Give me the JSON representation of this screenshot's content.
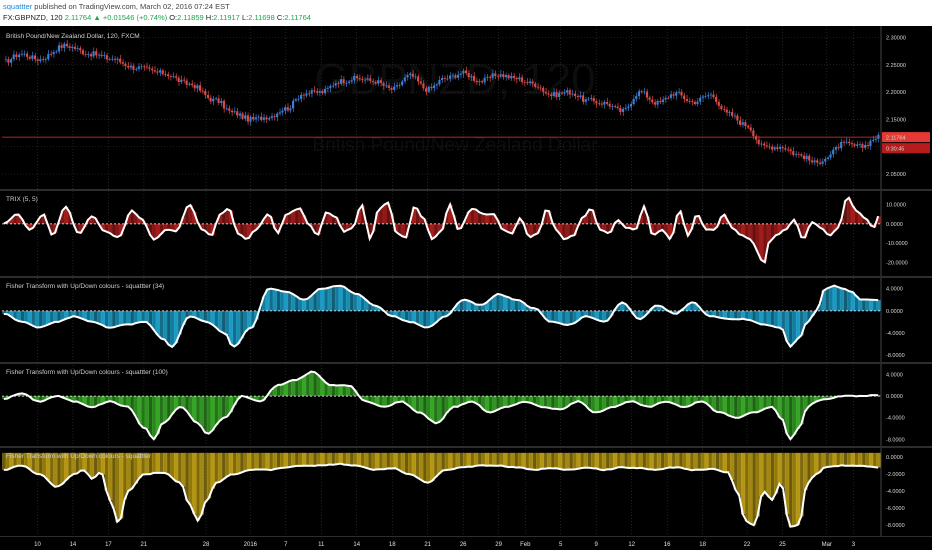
{
  "header": {
    "user": "squattter",
    "published": " published on TradingView.com, March 02, 2016 07:24 EST",
    "symbol": "FX:GBPNZD, 120",
    "last": "2.11764",
    "change": "+0.01546 (+0.74%)",
    "o_label": "O:",
    "o": "2.11859",
    "h_label": "H:",
    "h": "2.11917",
    "l_label": "L:",
    "l": "2.11698",
    "c_label": "C:",
    "c": "2.11764"
  },
  "colors": {
    "up": "#3c7fd6",
    "down": "#e04b49",
    "trix_fill": "#b0201e",
    "fisher34_fill": "#21a9d4",
    "fisher100_fill": "#3cb32b",
    "fisher_last_fill": "#c5a517",
    "grid": "#3a3a3a",
    "price_line": "#e53935"
  },
  "chart_data": [
    {
      "id": "price",
      "type": "candlestick",
      "title": "British Pound/New Zealand Dollar, 120, FXCM",
      "watermark": "GBPNZD, 120",
      "watermark_sub": "British Pound/New Zealand Dollar",
      "ylim": [
        2.03,
        2.31
      ],
      "yticks": [
        "2.30000",
        "2.25000",
        "2.20000",
        "2.15000",
        "2.10000",
        "2.05000"
      ],
      "last_price": "2.11764",
      "countdown": "0:30:45",
      "anchors": [
        [
          0,
          2.255
        ],
        [
          2,
          2.27
        ],
        [
          4,
          2.26
        ],
        [
          7,
          2.285
        ],
        [
          10,
          2.27
        ],
        [
          12,
          2.262
        ],
        [
          15,
          2.245
        ],
        [
          18,
          2.235
        ],
        [
          21,
          2.215
        ],
        [
          24,
          2.185
        ],
        [
          26,
          2.162
        ],
        [
          28,
          2.15
        ],
        [
          30,
          2.155
        ],
        [
          32,
          2.17
        ],
        [
          34,
          2.198
        ],
        [
          36,
          2.2
        ],
        [
          38,
          2.22
        ],
        [
          40,
          2.225
        ],
        [
          42,
          2.22
        ],
        [
          44,
          2.205
        ],
        [
          46,
          2.23
        ],
        [
          48,
          2.205
        ],
        [
          50,
          2.225
        ],
        [
          52,
          2.235
        ],
        [
          54,
          2.22
        ],
        [
          56,
          2.232
        ],
        [
          58,
          2.225
        ],
        [
          60,
          2.215
        ],
        [
          62,
          2.195
        ],
        [
          64,
          2.2
        ],
        [
          66,
          2.185
        ],
        [
          68,
          2.18
        ],
        [
          70,
          2.165
        ],
        [
          72,
          2.2
        ],
        [
          74,
          2.18
        ],
        [
          76,
          2.198
        ],
        [
          78,
          2.182
        ],
        [
          80,
          2.195
        ],
        [
          82,
          2.16
        ],
        [
          84,
          2.14
        ],
        [
          86,
          2.1
        ],
        [
          88,
          2.1
        ],
        [
          90,
          2.085
        ],
        [
          92,
          2.07
        ],
        [
          93,
          2.08
        ],
        [
          95,
          2.105
        ],
        [
          97,
          2.1
        ],
        [
          99,
          2.118
        ]
      ]
    },
    {
      "id": "trix",
      "type": "area",
      "title": "TRIX (5, 5)",
      "ylim": [
        -25,
        15
      ],
      "yticks": [
        10,
        0,
        -10,
        -20
      ],
      "ytick_labels": [
        "10.0000",
        "0.0000",
        "-10.0000",
        "-20.0000"
      ],
      "anchors": [
        [
          0,
          0
        ],
        [
          1.5,
          5
        ],
        [
          3,
          -3
        ],
        [
          4.5,
          5
        ],
        [
          5.5,
          -6
        ],
        [
          7,
          9
        ],
        [
          8.5,
          -5
        ],
        [
          10,
          4
        ],
        [
          11.5,
          -4
        ],
        [
          13,
          -7
        ],
        [
          14.5,
          7
        ],
        [
          15.5,
          3
        ],
        [
          17,
          -8
        ],
        [
          18.5,
          -3
        ],
        [
          19.5,
          -4
        ],
        [
          21,
          10
        ],
        [
          22.5,
          -3
        ],
        [
          23.5,
          -6
        ],
        [
          24.5,
          5
        ],
        [
          25.5,
          8
        ],
        [
          26.5,
          -5
        ],
        [
          27.5,
          -8
        ],
        [
          28.5,
          -3
        ],
        [
          30,
          5
        ],
        [
          31,
          -5
        ],
        [
          32,
          5
        ],
        [
          33.5,
          8
        ],
        [
          34.5,
          0
        ],
        [
          35.5,
          -6
        ],
        [
          36.5,
          6
        ],
        [
          37.5,
          4
        ],
        [
          38.5,
          -4
        ],
        [
          39.5,
          -2
        ],
        [
          40.5,
          10
        ],
        [
          41.5,
          -8
        ],
        [
          42.5,
          8
        ],
        [
          43.5,
          11
        ],
        [
          44.5,
          -5
        ],
        [
          45.5,
          -7
        ],
        [
          46.5,
          9
        ],
        [
          47.5,
          3
        ],
        [
          48.5,
          -8
        ],
        [
          49.5,
          -4
        ],
        [
          50.5,
          10
        ],
        [
          51.5,
          -3
        ],
        [
          53,
          8
        ],
        [
          54.5,
          5
        ],
        [
          55.5,
          5
        ],
        [
          56.5,
          -3
        ],
        [
          57.5,
          -5
        ],
        [
          58.5,
          3
        ],
        [
          59.5,
          -7
        ],
        [
          60.5,
          -5
        ],
        [
          61.5,
          8
        ],
        [
          62.5,
          -3
        ],
        [
          63.5,
          -8
        ],
        [
          64.5,
          -6
        ],
        [
          65.5,
          3
        ],
        [
          66.5,
          8
        ],
        [
          67.5,
          -3
        ],
        [
          68.5,
          -5
        ],
        [
          69.5,
          2
        ],
        [
          70.5,
          -2
        ],
        [
          71.5,
          -3
        ],
        [
          72.5,
          9
        ],
        [
          73.5,
          -6
        ],
        [
          74.5,
          -3
        ],
        [
          75.5,
          -8
        ],
        [
          76.5,
          7
        ],
        [
          77.5,
          -6
        ],
        [
          78.5,
          5
        ],
        [
          79.5,
          -3
        ],
        [
          80.5,
          -3
        ],
        [
          81.5,
          5
        ],
        [
          82.5,
          -2
        ],
        [
          83.5,
          -6
        ],
        [
          84.5,
          -8
        ],
        [
          85.5,
          -15
        ],
        [
          86,
          -23
        ],
        [
          86.5,
          -10
        ],
        [
          87.5,
          -6
        ],
        [
          88.5,
          -3
        ],
        [
          89.5,
          2
        ],
        [
          90.5,
          -8
        ],
        [
          91.5,
          1
        ],
        [
          92.5,
          -2
        ],
        [
          93.5,
          -6
        ],
        [
          94.5,
          -2
        ],
        [
          95.5,
          14
        ],
        [
          96.5,
          7
        ],
        [
          97.5,
          3
        ],
        [
          98.5,
          -2
        ],
        [
          99,
          4
        ]
      ]
    },
    {
      "id": "fisher34",
      "type": "area",
      "title": "Fisher Transform with Up/Down colours - squattter (34)",
      "ylim": [
        -8.5,
        5.2
      ],
      "yticks": [
        4,
        0,
        -4,
        -8
      ],
      "ytick_labels": [
        "4.0000",
        "0.0000",
        "-4.0000",
        "-8.0000"
      ],
      "anchors": [
        [
          0,
          -0.5
        ],
        [
          2,
          -2
        ],
        [
          4,
          -3
        ],
        [
          6,
          -2
        ],
        [
          8,
          -1
        ],
        [
          10,
          -2
        ],
        [
          12,
          -3
        ],
        [
          14,
          -2.5
        ],
        [
          16,
          -2
        ],
        [
          18,
          -5
        ],
        [
          19,
          -6.5
        ],
        [
          21,
          -1
        ],
        [
          23,
          -2
        ],
        [
          25,
          -4
        ],
        [
          26,
          -6.5
        ],
        [
          28,
          -3
        ],
        [
          30,
          4
        ],
        [
          32,
          3.5
        ],
        [
          34,
          2
        ],
        [
          36,
          4
        ],
        [
          38,
          4.5
        ],
        [
          40,
          3
        ],
        [
          42,
          1
        ],
        [
          44,
          -1
        ],
        [
          46,
          -2
        ],
        [
          48,
          -3
        ],
        [
          50,
          -1
        ],
        [
          52,
          2
        ],
        [
          54,
          1
        ],
        [
          56,
          3
        ],
        [
          58,
          2
        ],
        [
          60,
          0.5
        ],
        [
          62,
          -2
        ],
        [
          64,
          -2.5
        ],
        [
          66,
          -1
        ],
        [
          68,
          -2
        ],
        [
          70,
          1.5
        ],
        [
          72,
          -1.5
        ],
        [
          74,
          1
        ],
        [
          76,
          -0.5
        ],
        [
          78,
          1.5
        ],
        [
          80,
          -1
        ],
        [
          82,
          -1.5
        ],
        [
          84,
          -1.5
        ],
        [
          86,
          -2.5
        ],
        [
          88,
          -3
        ],
        [
          89,
          -6.5
        ],
        [
          90,
          -5
        ],
        [
          91,
          -2
        ],
        [
          92,
          0
        ],
        [
          93,
          4
        ],
        [
          94,
          4.5
        ],
        [
          95,
          4
        ],
        [
          96,
          3.5
        ],
        [
          97,
          2
        ],
        [
          99,
          2
        ]
      ]
    },
    {
      "id": "fisher100",
      "type": "area",
      "title": "Fisher Transform with Up/Down colours - squattter (100)",
      "ylim": [
        -8.5,
        5.2
      ],
      "yticks": [
        4,
        0,
        -4,
        -8
      ],
      "ytick_labels": [
        "4.0000",
        "0.0000",
        "-4.0000",
        "-8.0000"
      ],
      "anchors": [
        [
          0,
          -0.5
        ],
        [
          2,
          0.5
        ],
        [
          4,
          -1
        ],
        [
          6,
          0
        ],
        [
          8,
          -1
        ],
        [
          10,
          -2
        ],
        [
          12,
          -1
        ],
        [
          14,
          -2
        ],
        [
          16,
          -6
        ],
        [
          17,
          -8
        ],
        [
          18,
          -5
        ],
        [
          20,
          -2
        ],
        [
          22,
          -5
        ],
        [
          23,
          -7
        ],
        [
          25,
          -4
        ],
        [
          27,
          0
        ],
        [
          29,
          -1
        ],
        [
          31,
          2
        ],
        [
          33,
          3
        ],
        [
          35,
          4.5
        ],
        [
          37,
          2
        ],
        [
          39,
          2
        ],
        [
          41,
          -1
        ],
        [
          43,
          -2
        ],
        [
          45,
          -1
        ],
        [
          47,
          -3
        ],
        [
          49,
          -5
        ],
        [
          51,
          -2
        ],
        [
          53,
          -1
        ],
        [
          55,
          -3
        ],
        [
          57,
          -2
        ],
        [
          59,
          -1
        ],
        [
          61,
          -2
        ],
        [
          63,
          -2.5
        ],
        [
          65,
          -1
        ],
        [
          67,
          -3
        ],
        [
          69,
          -2
        ],
        [
          71,
          -1
        ],
        [
          73,
          -2
        ],
        [
          75,
          -1
        ],
        [
          77,
          -2
        ],
        [
          79,
          -1
        ],
        [
          81,
          -3
        ],
        [
          83,
          -4
        ],
        [
          85,
          -3
        ],
        [
          87,
          -2
        ],
        [
          88,
          -4
        ],
        [
          89,
          -8
        ],
        [
          90,
          -6
        ],
        [
          91,
          -2
        ],
        [
          92,
          -1
        ],
        [
          93,
          -0.5
        ],
        [
          95,
          0
        ],
        [
          97,
          0
        ],
        [
          99,
          0.2
        ]
      ]
    },
    {
      "id": "fisher_last",
      "type": "area",
      "title": "Fisher Transform with Up/Down colours - squattter",
      "ylim": [
        -8.8,
        0.6
      ],
      "yticks": [
        0,
        -2,
        -4,
        -6,
        -8
      ],
      "ytick_labels": [
        "0.0000",
        "-2.0000",
        "-4.0000",
        "-6.0000",
        "-8.0000"
      ],
      "anchors": [
        [
          0,
          -1.5
        ],
        [
          2,
          -1
        ],
        [
          4,
          -2
        ],
        [
          6,
          -3.5
        ],
        [
          8,
          -2
        ],
        [
          9,
          -1.5
        ],
        [
          10,
          -2.5
        ],
        [
          11,
          -1.8
        ],
        [
          12,
          -5
        ],
        [
          13,
          -7.8
        ],
        [
          14,
          -4
        ],
        [
          16,
          -2
        ],
        [
          18,
          -1.8
        ],
        [
          20,
          -3
        ],
        [
          21,
          -5.5
        ],
        [
          22,
          -7.5
        ],
        [
          23,
          -5
        ],
        [
          24,
          -3
        ],
        [
          26,
          -2
        ],
        [
          28,
          -1.5
        ],
        [
          30,
          -1.5
        ],
        [
          32,
          -1.2
        ],
        [
          34,
          -1
        ],
        [
          36,
          -1
        ],
        [
          38,
          -0.8
        ],
        [
          40,
          -1
        ],
        [
          42,
          -1.5
        ],
        [
          44,
          -1.3
        ],
        [
          46,
          -2
        ],
        [
          48,
          -3
        ],
        [
          50,
          -1.5
        ],
        [
          52,
          -1.2
        ],
        [
          54,
          -1
        ],
        [
          56,
          -1
        ],
        [
          58,
          -1.2
        ],
        [
          60,
          -1.5
        ],
        [
          62,
          -1.3
        ],
        [
          64,
          -1.5
        ],
        [
          66,
          -1.2
        ],
        [
          68,
          -1.5
        ],
        [
          70,
          -1.2
        ],
        [
          72,
          -1.3
        ],
        [
          74,
          -1.5
        ],
        [
          76,
          -1.2
        ],
        [
          78,
          -1.5
        ],
        [
          80,
          -1.4
        ],
        [
          82,
          -1.8
        ],
        [
          83,
          -4
        ],
        [
          84,
          -7.5
        ],
        [
          85,
          -8
        ],
        [
          86,
          -4
        ],
        [
          87,
          -5
        ],
        [
          88,
          -3
        ],
        [
          89,
          -8.2
        ],
        [
          90,
          -8
        ],
        [
          91,
          -3
        ],
        [
          92,
          -2
        ],
        [
          93,
          -1.2
        ],
        [
          95,
          -1
        ],
        [
          97,
          -1
        ],
        [
          99,
          -1.2
        ]
      ]
    }
  ],
  "x_axis": {
    "labels": [
      {
        "x": 4,
        "text": "10"
      },
      {
        "x": 8,
        "text": "14"
      },
      {
        "x": 12,
        "text": "17"
      },
      {
        "x": 16,
        "text": "21"
      },
      {
        "x": 23,
        "text": "28"
      },
      {
        "x": 28,
        "text": "2016"
      },
      {
        "x": 32,
        "text": "7"
      },
      {
        "x": 36,
        "text": "11"
      },
      {
        "x": 40,
        "text": "14"
      },
      {
        "x": 44,
        "text": "18"
      },
      {
        "x": 48,
        "text": "21"
      },
      {
        "x": 52,
        "text": "26"
      },
      {
        "x": 56,
        "text": "29"
      },
      {
        "x": 59,
        "text": "Feb"
      },
      {
        "x": 63,
        "text": "5"
      },
      {
        "x": 67,
        "text": "9"
      },
      {
        "x": 71,
        "text": "12"
      },
      {
        "x": 75,
        "text": "16"
      },
      {
        "x": 79,
        "text": "18"
      },
      {
        "x": 84,
        "text": "22"
      },
      {
        "x": 88,
        "text": "25"
      },
      {
        "x": 93,
        "text": "Mar"
      },
      {
        "x": 96,
        "text": "3"
      }
    ]
  }
}
